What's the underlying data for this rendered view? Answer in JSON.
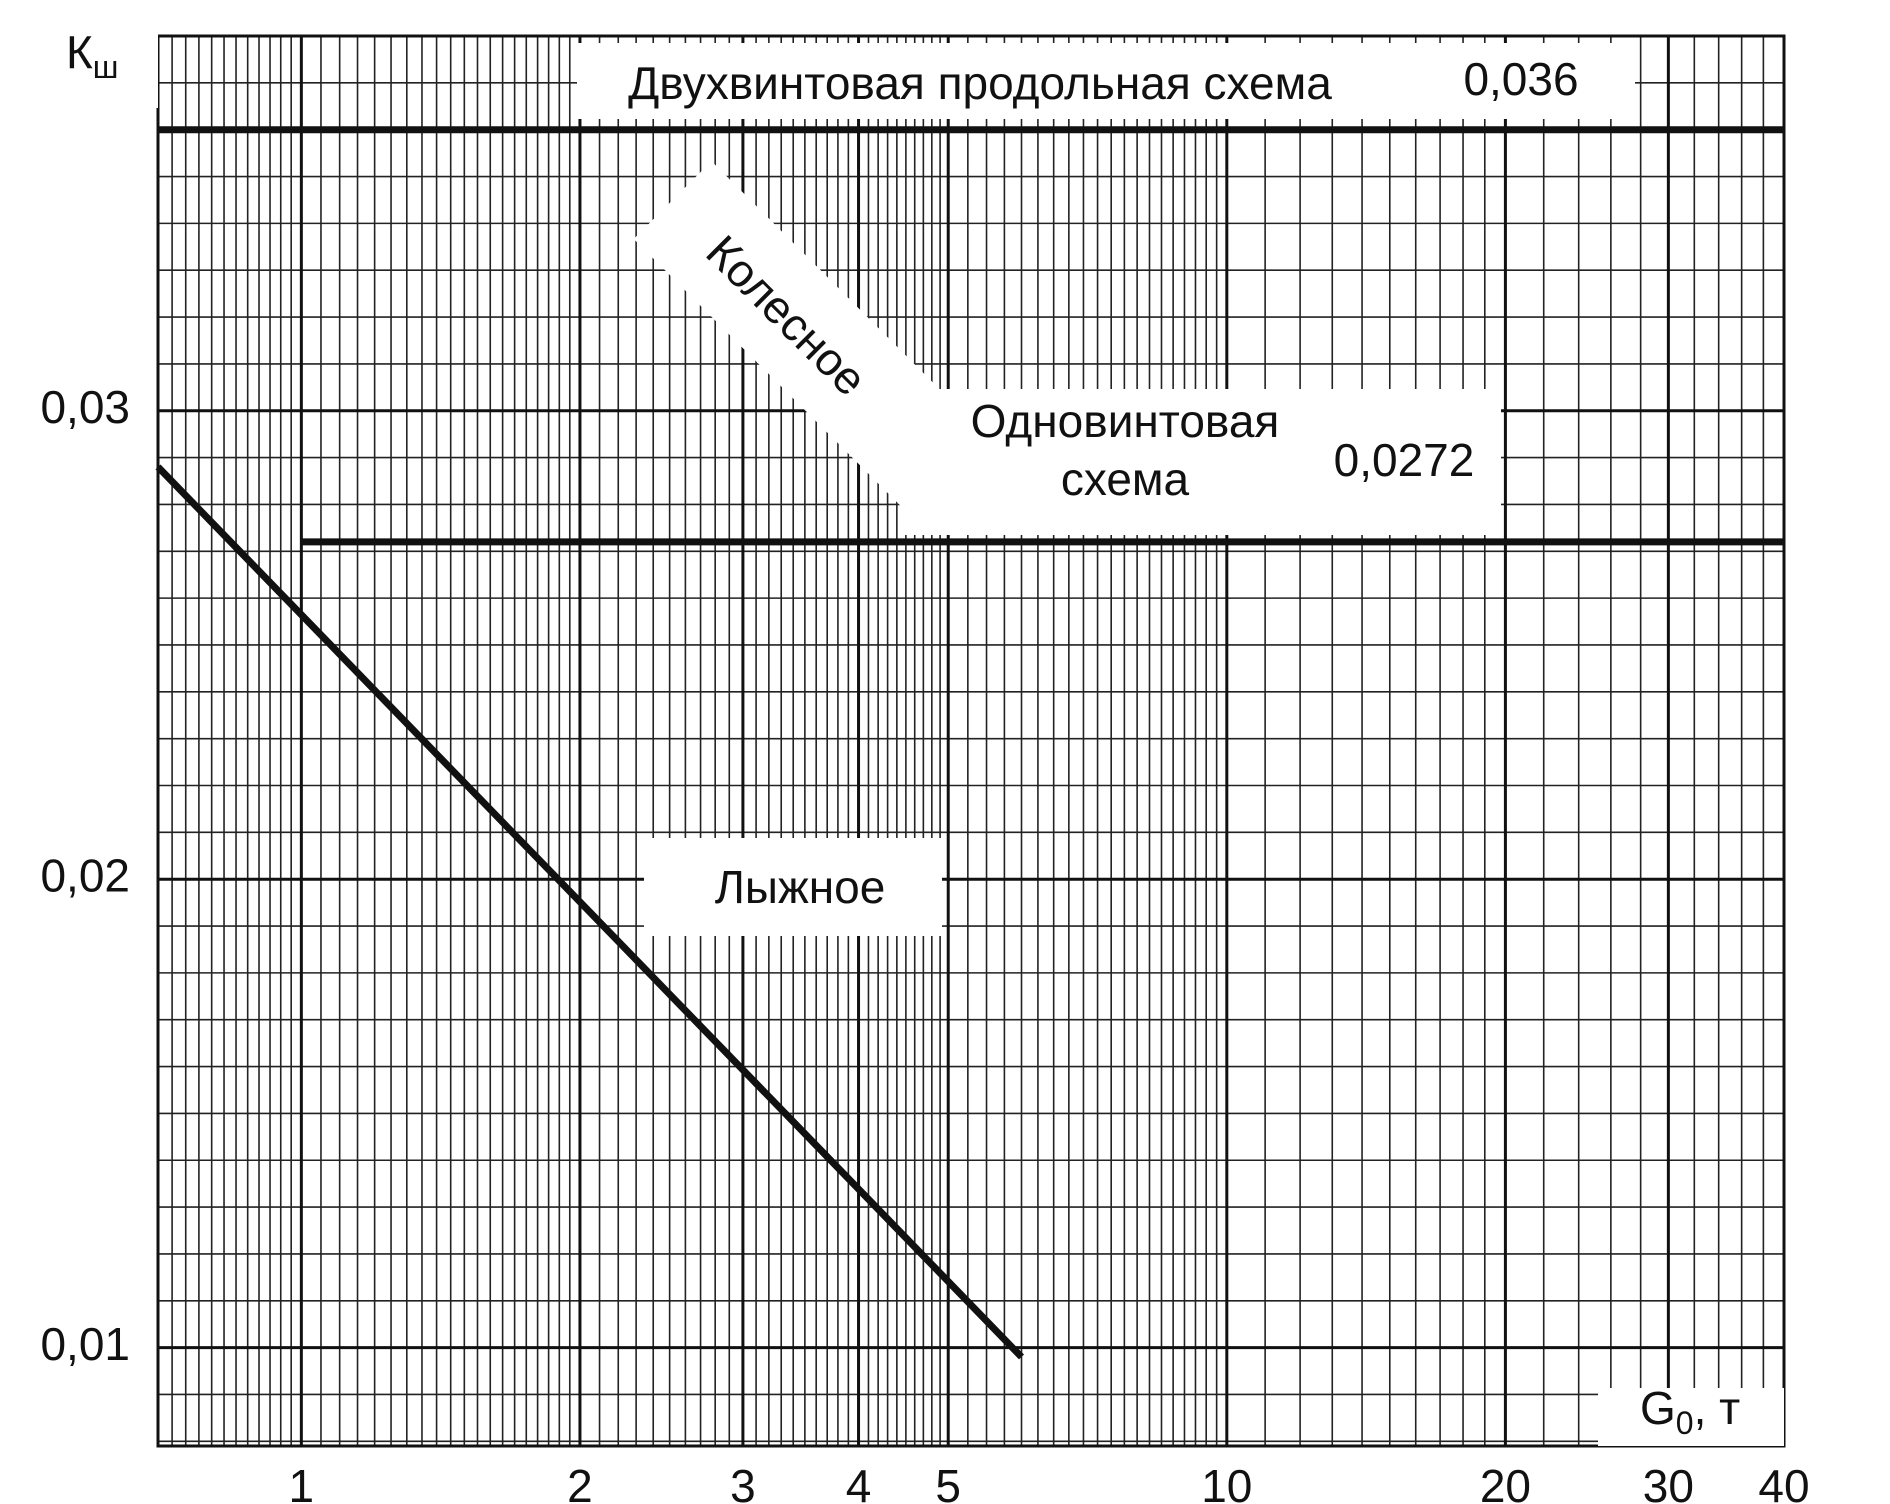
{
  "chart_data": {
    "type": "line",
    "xscale": "log",
    "xlim": [
      0.7,
      40
    ],
    "ylim": [
      0.0079,
      0.038
    ],
    "xticks": [
      1,
      2,
      3,
      4,
      5,
      10,
      20,
      30,
      40
    ],
    "yticks": [
      {
        "value": 0.01,
        "label": "0,01"
      },
      {
        "value": 0.02,
        "label": "0,02"
      },
      {
        "value": 0.03,
        "label": "0,03"
      }
    ],
    "grid": true,
    "minor_grid": true,
    "xlabel": {
      "text": "G",
      "subscript": "0",
      "suffix": ", т"
    },
    "ylabel": {
      "text": "К",
      "subscript": "ш"
    },
    "annotations": [
      "Колесное"
    ],
    "series": [
      {
        "name": "Двухвинтовая продольная схема",
        "color": "#111111",
        "x": [
          0.7,
          40
        ],
        "values": [
          0.036,
          0.036
        ],
        "value_labels": [
          null,
          "0,036"
        ]
      },
      {
        "name": "Одновинтовая схема",
        "color": "#111111",
        "x": [
          1,
          40
        ],
        "values": [
          0.0272,
          0.0272
        ],
        "value_labels": [
          null,
          "0,0272"
        ]
      },
      {
        "name": "Лыжное",
        "color": "#111111",
        "x": [
          0.7,
          6
        ],
        "values": [
          0.0288,
          0.0098
        ]
      }
    ]
  }
}
